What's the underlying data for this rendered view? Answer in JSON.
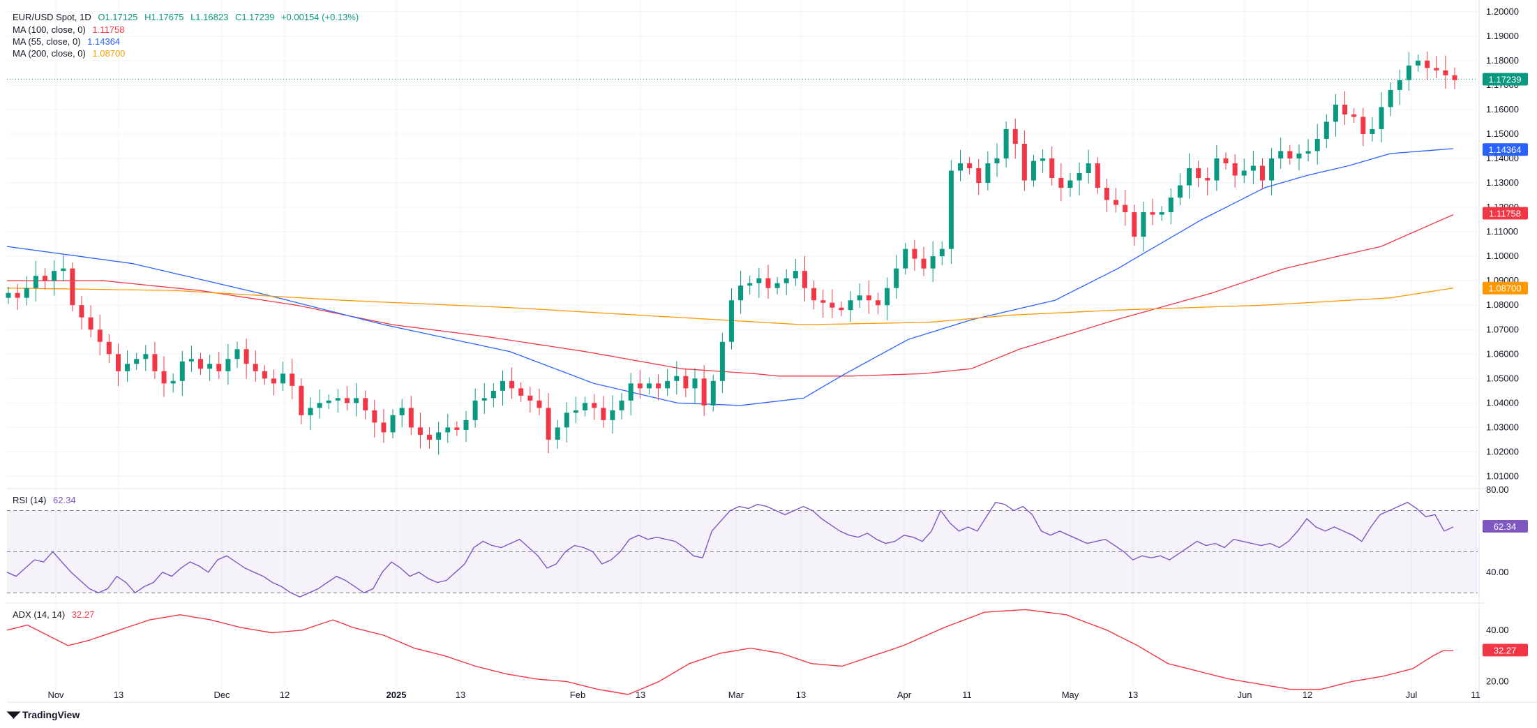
{
  "header": {
    "symbol": "EUR/USD Spot, 1D",
    "open": "O1.17125",
    "high": "H1.17675",
    "low": "L1.16823",
    "close": "C1.17239",
    "change": "+0.00154 (+0.13%)"
  },
  "indicators": {
    "ma100": {
      "label": "MA (100, close, 0)",
      "value": "1.11758",
      "color": "#f23645"
    },
    "ma55": {
      "label": "MA (55, close, 0)",
      "value": "1.14364",
      "color": "#2962ff"
    },
    "ma200": {
      "label": "MA (200, close, 0)",
      "value": "1.08700",
      "color": "#ff9800"
    },
    "rsi": {
      "label": "RSI (14)",
      "value": "62.34",
      "color": "#7e57c2"
    },
    "adx": {
      "label": "ADX (14, 14)",
      "value": "32.27",
      "color": "#f23645"
    }
  },
  "price_badge": {
    "value": "1.17239",
    "color": "#089981"
  },
  "logo": {
    "text": "TradingView"
  },
  "chart_data": [
    {
      "type": "candlestick",
      "title": "EUR/USD Spot, 1D",
      "y_ticks": [
        "1.20000",
        "1.19000",
        "1.18000",
        "1.17000",
        "1.16000",
        "1.15000",
        "1.14000",
        "1.13000",
        "1.12000",
        "1.11000",
        "1.10000",
        "1.09000",
        "1.08000",
        "1.07000",
        "1.06000",
        "1.05000",
        "1.04000",
        "1.03000",
        "1.02000",
        "1.01000"
      ],
      "ylim": [
        1.005,
        1.2025
      ],
      "x_ticks": [
        "Nov",
        "13",
        "Dec",
        "12",
        "2025",
        "13",
        "Feb",
        "13",
        "Mar",
        "13",
        "Apr",
        "11",
        "May",
        "13",
        "Jun",
        "12",
        "Jul",
        "11"
      ],
      "close_series": [
        1.085,
        1.083,
        1.087,
        1.092,
        1.09,
        1.094,
        1.095,
        1.08,
        1.075,
        1.07,
        1.065,
        1.06,
        1.053,
        1.056,
        1.058,
        1.06,
        1.053,
        1.048,
        1.049,
        1.057,
        1.058,
        1.054,
        1.056,
        1.053,
        1.058,
        1.062,
        1.056,
        1.053,
        1.05,
        1.048,
        1.052,
        1.047,
        1.035,
        1.038,
        1.04,
        1.041,
        1.042,
        1.04,
        1.042,
        1.037,
        1.032,
        1.028,
        1.035,
        1.038,
        1.03,
        1.027,
        1.025,
        1.028,
        1.03,
        1.029,
        1.033,
        1.041,
        1.042,
        1.045,
        1.049,
        1.046,
        1.043,
        1.041,
        1.038,
        1.025,
        1.03,
        1.036,
        1.037,
        1.04,
        1.038,
        1.033,
        1.037,
        1.041,
        1.048,
        1.046,
        1.048,
        1.046,
        1.049,
        1.051,
        1.046,
        1.05,
        1.039,
        1.049,
        1.065,
        1.082,
        1.088,
        1.089,
        1.091,
        1.087,
        1.089,
        1.091,
        1.094,
        1.087,
        1.082,
        1.081,
        1.079,
        1.078,
        1.082,
        1.084,
        1.082,
        1.08,
        1.087,
        1.095,
        1.103,
        1.099,
        1.095,
        1.1,
        1.103,
        1.135,
        1.138,
        1.136,
        1.13,
        1.138,
        1.14,
        1.152,
        1.146,
        1.131,
        1.139,
        1.14,
        1.132,
        1.128,
        1.131,
        1.134,
        1.138,
        1.128,
        1.123,
        1.121,
        1.118,
        1.108,
        1.118,
        1.117,
        1.118,
        1.124,
        1.129,
        1.136,
        1.132,
        1.131,
        1.14,
        1.138,
        1.133,
        1.135,
        1.137,
        1.131,
        1.14,
        1.143,
        1.14,
        1.142,
        1.143,
        1.148,
        1.155,
        1.162,
        1.158,
        1.157,
        1.15,
        1.152,
        1.161,
        1.168,
        1.172,
        1.178,
        1.18,
        1.177,
        1.176,
        1.174,
        1.172
      ],
      "series": [
        {
          "name": "MA (100, close, 0)",
          "last": 1.11758,
          "anchors": [
            [
              0,
              1.09
            ],
            [
              20,
              1.09
            ],
            [
              40,
              1.086
            ],
            [
              60,
              1.08
            ],
            [
              80,
              1.072
            ],
            [
              100,
              1.067
            ],
            [
              120,
              1.061
            ],
            [
              140,
              1.054
            ],
            [
              155,
              1.052
            ],
            [
              160,
              1.051
            ],
            [
              175,
              1.051
            ],
            [
              190,
              1.052
            ],
            [
              200,
              1.054
            ],
            [
              210,
              1.062
            ],
            [
              230,
              1.074
            ],
            [
              250,
              1.085
            ],
            [
              265,
              1.095
            ],
            [
              285,
              1.104
            ],
            [
              300,
              1.117
            ]
          ]
        },
        {
          "name": "MA (55, close, 0)",
          "last": 1.14364,
          "anchors": [
            [
              0,
              1.104
            ],
            [
              30,
              1.097
            ],
            [
              60,
              1.085
            ],
            [
              90,
              1.072
            ],
            [
              120,
              1.061
            ],
            [
              140,
              1.048
            ],
            [
              160,
              1.04
            ],
            [
              175,
              1.039
            ],
            [
              190,
              1.042
            ],
            [
              200,
              1.052
            ],
            [
              215,
              1.066
            ],
            [
              230,
              1.074
            ],
            [
              250,
              1.082
            ],
            [
              265,
              1.095
            ],
            [
              285,
              1.115
            ],
            [
              300,
              1.128
            ],
            [
              310,
              1.133
            ],
            [
              320,
              1.137
            ],
            [
              330,
              1.142
            ],
            [
              345,
              1.144
            ]
          ]
        },
        {
          "name": "MA (200, close, 0)",
          "last": 1.087,
          "anchors": [
            [
              0,
              1.087
            ],
            [
              40,
              1.086
            ],
            [
              80,
              1.082
            ],
            [
              120,
              1.079
            ],
            [
              160,
              1.075
            ],
            [
              190,
              1.072
            ],
            [
              220,
              1.073
            ],
            [
              240,
              1.076
            ],
            [
              265,
              1.078
            ],
            [
              300,
              1.08
            ],
            [
              330,
              1.083
            ],
            [
              345,
              1.087
            ]
          ]
        }
      ]
    },
    {
      "type": "line",
      "title": "RSI (14)",
      "y_ticks": [
        "80.00",
        "40.00"
      ],
      "ylim": [
        25,
        80
      ],
      "bands": [
        70,
        50,
        30
      ],
      "values": [
        40,
        38,
        42,
        46,
        45,
        50,
        45,
        40,
        36,
        32,
        30,
        32,
        38,
        35,
        30,
        33,
        35,
        40,
        38,
        42,
        45,
        43,
        40,
        46,
        48,
        45,
        42,
        40,
        38,
        35,
        33,
        30,
        28,
        30,
        32,
        35,
        38,
        36,
        33,
        30,
        32,
        40,
        45,
        42,
        38,
        40,
        37,
        35,
        36,
        40,
        44,
        52,
        55,
        53,
        52,
        54,
        56,
        52,
        48,
        42,
        44,
        50,
        53,
        52,
        50,
        44,
        46,
        50,
        56,
        58,
        56,
        57,
        56,
        55,
        52,
        48,
        47,
        60,
        65,
        70,
        72,
        71,
        73,
        72,
        70,
        68,
        70,
        72,
        70,
        66,
        63,
        60,
        58,
        57,
        59,
        56,
        54,
        55,
        58,
        57,
        55,
        60,
        70,
        64,
        60,
        62,
        60,
        67,
        74,
        73,
        70,
        72,
        68,
        60,
        58,
        60,
        58,
        56,
        54,
        55,
        56,
        53,
        50,
        46,
        48,
        47,
        48,
        46,
        49,
        52,
        55,
        53,
        54,
        52,
        56,
        55,
        54,
        53,
        54,
        52,
        55,
        60,
        66,
        62,
        60,
        62,
        60,
        58,
        55,
        62,
        68,
        70,
        72,
        74,
        71,
        67,
        68,
        60,
        62
      ],
      "last": 62.34
    },
    {
      "type": "line",
      "title": "ADX (14, 14)",
      "y_ticks": [
        "40.00",
        "20.00"
      ],
      "ylim": [
        12,
        50
      ],
      "anchors": [
        [
          0,
          40
        ],
        [
          10,
          42
        ],
        [
          20,
          38
        ],
        [
          30,
          34
        ],
        [
          40,
          36
        ],
        [
          55,
          40
        ],
        [
          70,
          44
        ],
        [
          85,
          46
        ],
        [
          100,
          44
        ],
        [
          115,
          41
        ],
        [
          130,
          39
        ],
        [
          145,
          40
        ],
        [
          160,
          44
        ],
        [
          170,
          41
        ],
        [
          185,
          38
        ],
        [
          200,
          33
        ],
        [
          215,
          30
        ],
        [
          230,
          26
        ],
        [
          245,
          23
        ],
        [
          260,
          21
        ],
        [
          275,
          20
        ],
        [
          290,
          17
        ],
        [
          305,
          15
        ],
        [
          320,
          20
        ],
        [
          335,
          27
        ],
        [
          350,
          31
        ],
        [
          365,
          33
        ],
        [
          380,
          31
        ],
        [
          395,
          27
        ],
        [
          410,
          26
        ],
        [
          425,
          30
        ],
        [
          440,
          34
        ],
        [
          460,
          41
        ],
        [
          480,
          47
        ],
        [
          500,
          48
        ],
        [
          520,
          46
        ],
        [
          540,
          40
        ],
        [
          555,
          34
        ],
        [
          570,
          27
        ],
        [
          585,
          24
        ],
        [
          600,
          21
        ],
        [
          615,
          19
        ],
        [
          630,
          17
        ],
        [
          645,
          17
        ],
        [
          660,
          20
        ],
        [
          675,
          22
        ],
        [
          690,
          25
        ],
        [
          700,
          30
        ],
        [
          705,
          32
        ],
        [
          710,
          32
        ]
      ],
      "last": 32.27
    }
  ]
}
